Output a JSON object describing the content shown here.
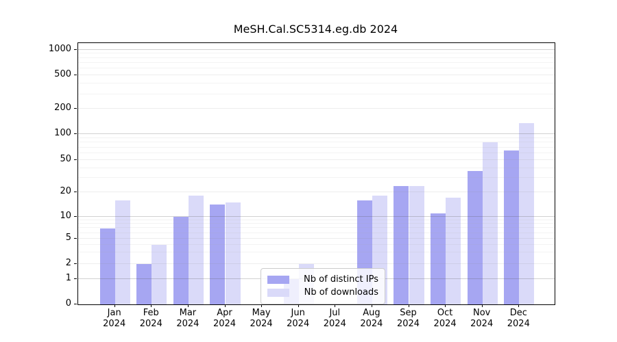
{
  "title": "MeSH.Cal.SC5314.eg.db 2024",
  "chart_data": {
    "type": "bar",
    "title": "MeSH.Cal.SC5314.eg.db 2024",
    "categories": [
      "Jan 2024",
      "Feb 2024",
      "Mar 2024",
      "Apr 2024",
      "May 2024",
      "Jun 2024",
      "Jul 2024",
      "Aug 2024",
      "Sep 2024",
      "Oct 2024",
      "Nov 2024",
      "Dec 2024"
    ],
    "series": [
      {
        "name": "Nb of distinct IPs",
        "color": "#a6a6f2",
        "values": [
          7,
          2,
          10,
          14,
          0,
          1,
          0,
          16,
          24,
          11,
          37,
          65
        ]
      },
      {
        "name": "Nb of downloads",
        "color": "#dadaf9",
        "values": [
          16,
          4,
          18,
          15,
          0,
          2,
          0,
          18,
          24,
          17,
          80,
          135
        ]
      }
    ],
    "xlabel": "",
    "ylabel": "",
    "y_scale": "symlog",
    "y_ticks": [
      "0",
      "1",
      "2",
      "5",
      "10",
      "20",
      "50",
      "100",
      "200",
      "500",
      "1000"
    ],
    "ylim": [
      0,
      1150
    ],
    "grid": true,
    "legend_position": "lower center"
  },
  "legend": {
    "items": [
      {
        "label": "Nb of distinct IPs",
        "color": "#a6a6f2"
      },
      {
        "label": "Nb of downloads",
        "color": "#dadaf9"
      }
    ]
  }
}
